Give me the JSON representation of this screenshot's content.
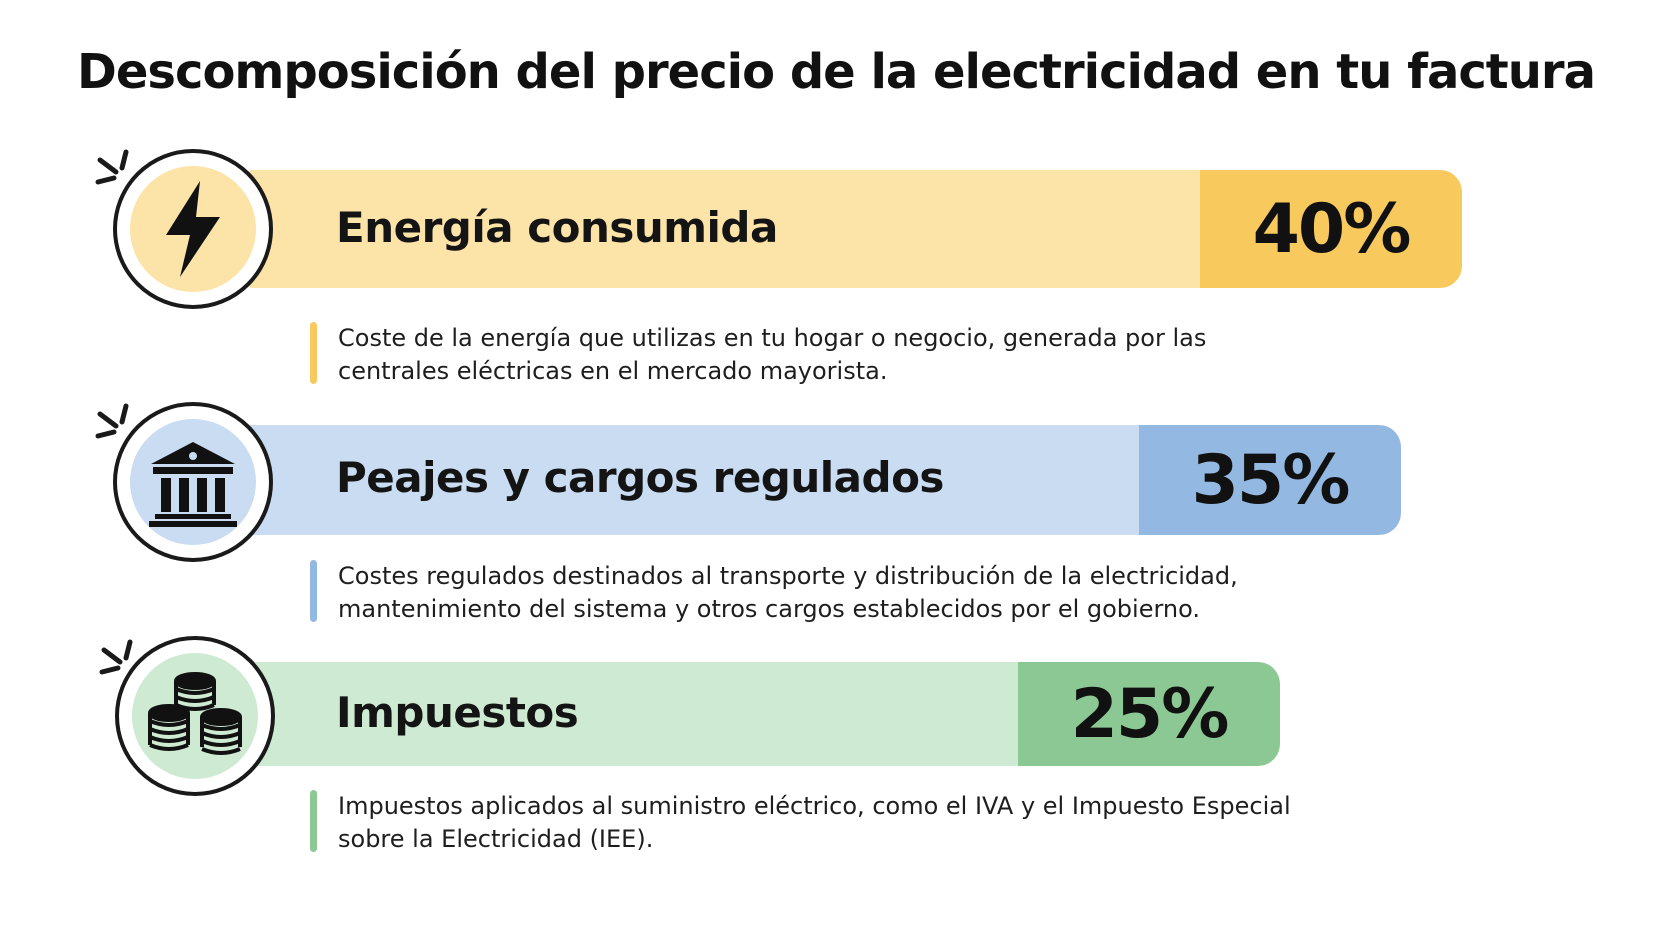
{
  "title": "Descomposición del precio de la electricidad en tu factura",
  "colors": {
    "energia_light": "#fce3a8",
    "energia_dark": "#f8c95c",
    "peajes_light": "#c9dcf2",
    "peajes_dark": "#93b9e2",
    "impuestos_light": "#cfead2",
    "impuestos_dark": "#8cc894"
  },
  "chart_data": {
    "type": "bar",
    "orientation": "horizontal",
    "title": "Descomposición del precio de la electricidad en tu factura",
    "categories": [
      "Energía consumida",
      "Peajes y cargos regulados",
      "Impuestos"
    ],
    "values": [
      40,
      35,
      25
    ],
    "unit": "%",
    "items": [
      {
        "label": "Energía consumida",
        "value": 40,
        "value_label": "40%",
        "icon": "lightning-bolt-icon",
        "description": "Coste de la energía que utilizas en tu hogar o negocio, generada por las centrales eléctricas en el mercado mayorista."
      },
      {
        "label": "Peajes y cargos regulados",
        "value": 35,
        "value_label": "35%",
        "icon": "government-building-icon",
        "description": "Costes regulados destinados al transporte y distribución de la electricidad, mantenimiento del sistema y otros cargos establecidos por el gobierno."
      },
      {
        "label": "Impuestos",
        "value": 25,
        "value_label": "25%",
        "icon": "coin-stacks-icon",
        "description": "Impuestos aplicados al suministro eléctrico, como el IVA y el Impuesto Especial sobre la Electricidad (IEE)."
      }
    ]
  }
}
